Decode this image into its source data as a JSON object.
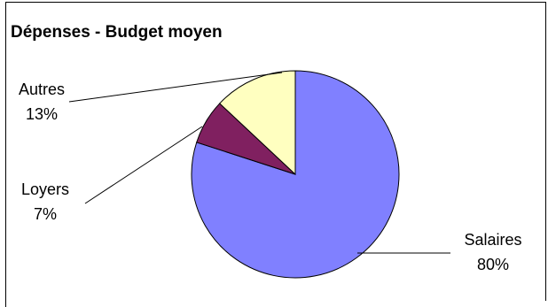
{
  "chart_data": {
    "type": "pie",
    "title": "Dépenses  - Budget moyen",
    "slices": [
      {
        "label": "Salaires",
        "value": 80,
        "value_label": "80%",
        "color": "#8080ff"
      },
      {
        "label": "Loyers",
        "value": 7,
        "value_label": "7%",
        "color": "#802060"
      },
      {
        "label": "Autres",
        "value": 13,
        "value_label": "13%",
        "color": "#ffffc0"
      }
    ],
    "start_angle": "12 o'clock",
    "direction": "clockwise",
    "legend": "none",
    "data_labels": "outside with leader lines"
  }
}
